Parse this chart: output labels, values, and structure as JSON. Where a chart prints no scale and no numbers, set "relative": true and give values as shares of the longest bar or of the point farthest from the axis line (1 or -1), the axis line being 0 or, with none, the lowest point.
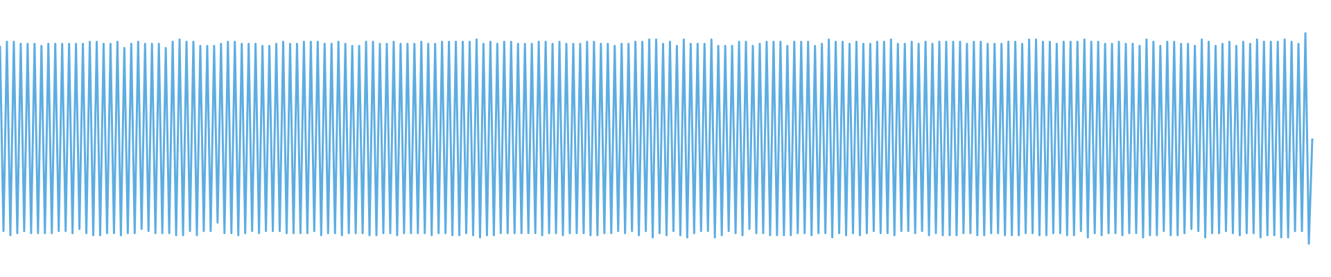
{
  "chart_data": {
    "type": "line",
    "relative": true,
    "color": "#5dade2",
    "marker": "none",
    "line_style": "solid",
    "categories": [
      null,
      null,
      null,
      null,
      null,
      null,
      null,
      null,
      null,
      null,
      null,
      null,
      null,
      null,
      null,
      null,
      null,
      null,
      null,
      null,
      null,
      null,
      null,
      null,
      null,
      null,
      null,
      null,
      null,
      null,
      null,
      null,
      null,
      null,
      null,
      null,
      null,
      null,
      null,
      null,
      null,
      null,
      null,
      null,
      null,
      null,
      null,
      null,
      null,
      null,
      null,
      null,
      null,
      null,
      null,
      null,
      null,
      null,
      null,
      null,
      null,
      null,
      null,
      null,
      null,
      null,
      null,
      null,
      null,
      null,
      null,
      null,
      null,
      null,
      null,
      null,
      null,
      null,
      null,
      null,
      null,
      null,
      null,
      null,
      null,
      null,
      null,
      null,
      null,
      null,
      null,
      null,
      null,
      null,
      null,
      null,
      null,
      null,
      null,
      null,
      null,
      null,
      null,
      null,
      null,
      null,
      null,
      null,
      null,
      null,
      null,
      null,
      null,
      null,
      null,
      null,
      null,
      null,
      null,
      null,
      null,
      null,
      null,
      null,
      null,
      null,
      null,
      null,
      null,
      null,
      null,
      null,
      null,
      null,
      null,
      null,
      null,
      null,
      null,
      null,
      null,
      null,
      null,
      null,
      null,
      null,
      null,
      null,
      null,
      null,
      null,
      null,
      null,
      null,
      null,
      null,
      null,
      null,
      null,
      null,
      null,
      null,
      null,
      null,
      null,
      null,
      null,
      null,
      null,
      null,
      null,
      null,
      null,
      null,
      null,
      null,
      null,
      null,
      null,
      null,
      null,
      null,
      null,
      null,
      null,
      null,
      null,
      null,
      null,
      null,
      null,
      null,
      null,
      null,
      null,
      null,
      null,
      null,
      null,
      null,
      null,
      null,
      null,
      null,
      null,
      null,
      null,
      null,
      null,
      null,
      null,
      null,
      null,
      null,
      null,
      null,
      null,
      null,
      null,
      null,
      null,
      null,
      null,
      null,
      null,
      null,
      null,
      null,
      null,
      null,
      null,
      null,
      null,
      null,
      null,
      null,
      null,
      null,
      null,
      null,
      null,
      null,
      null,
      null,
      null,
      null,
      null,
      null,
      null,
      null,
      null,
      null,
      null,
      null,
      null,
      null,
      null,
      null,
      null,
      null,
      null,
      null,
      null,
      null,
      null,
      null,
      null,
      null,
      null,
      null,
      null,
      null,
      null,
      null,
      null,
      null,
      null,
      null,
      null,
      null,
      null,
      null,
      null,
      null,
      null,
      null,
      null,
      null,
      null,
      null,
      null,
      null,
      null,
      null,
      null,
      null,
      null,
      null,
      null,
      null,
      null,
      null,
      null,
      null,
      null,
      null,
      null,
      null,
      null,
      null,
      null,
      null,
      null,
      null,
      null,
      null,
      null,
      null,
      null,
      null,
      null,
      null,
      null,
      null,
      null,
      null,
      null,
      null,
      null,
      null,
      null,
      null,
      null,
      null,
      null,
      null,
      null,
      null,
      null,
      null,
      null,
      null,
      null,
      null,
      null,
      null,
      null,
      null,
      null,
      null,
      null,
      null,
      null,
      null,
      null,
      null,
      null,
      null,
      null,
      null,
      null,
      null,
      null,
      null,
      null,
      null,
      null,
      null,
      null,
      null,
      null,
      null,
      null,
      null,
      null,
      null,
      null,
      null,
      null,
      null,
      null
    ],
    "values": [
      0.94,
      0.06,
      0.96,
      0.04,
      0.96,
      0.05,
      0.95,
      0.06,
      0.95,
      0.05,
      0.95,
      0.05,
      0.94,
      0.05,
      0.95,
      0.05,
      0.95,
      0.06,
      0.95,
      0.06,
      0.95,
      0.05,
      0.95,
      0.07,
      0.95,
      0.05,
      0.96,
      0.04,
      0.96,
      0.04,
      0.95,
      0.05,
      0.95,
      0.05,
      0.96,
      0.04,
      0.93,
      0.05,
      0.95,
      0.05,
      0.96,
      0.07,
      0.95,
      0.06,
      0.95,
      0.05,
      0.95,
      0.05,
      0.93,
      0.05,
      0.96,
      0.04,
      0.97,
      0.04,
      0.96,
      0.06,
      0.96,
      0.04,
      0.94,
      0.06,
      0.94,
      0.06,
      0.94,
      0.1,
      0.95,
      0.05,
      0.96,
      0.05,
      0.96,
      0.04,
      0.95,
      0.05,
      0.95,
      0.06,
      0.95,
      0.05,
      0.94,
      0.06,
      0.94,
      0.06,
      0.95,
      0.06,
      0.96,
      0.05,
      0.95,
      0.05,
      0.95,
      0.05,
      0.96,
      0.05,
      0.96,
      0.06,
      0.96,
      0.04,
      0.95,
      0.05,
      0.95,
      0.05,
      0.96,
      0.04,
      0.95,
      0.05,
      0.94,
      0.05,
      0.94,
      0.05,
      0.96,
      0.04,
      0.96,
      0.04,
      0.95,
      0.05,
      0.95,
      0.05,
      0.96,
      0.04,
      0.95,
      0.05,
      0.95,
      0.05,
      0.95,
      0.05,
      0.96,
      0.05,
      0.95,
      0.04,
      0.95,
      0.05,
      0.96,
      0.05,
      0.96,
      0.04,
      0.96,
      0.04,
      0.96,
      0.05,
      0.96,
      0.04,
      0.97,
      0.03,
      0.95,
      0.04,
      0.96,
      0.04,
      0.95,
      0.05,
      0.96,
      0.05,
      0.96,
      0.05,
      0.95,
      0.05,
      0.95,
      0.05,
      0.95,
      0.05,
      0.96,
      0.04,
      0.96,
      0.05,
      0.95,
      0.05,
      0.96,
      0.04,
      0.95,
      0.05,
      0.95,
      0.05,
      0.95,
      0.05,
      0.96,
      0.04,
      0.96,
      0.04,
      0.95,
      0.05,
      0.95,
      0.05,
      0.94,
      0.06,
      0.95,
      0.05,
      0.95,
      0.06,
      0.96,
      0.04,
      0.96,
      0.06,
      0.97,
      0.03,
      0.97,
      0.05,
      0.95,
      0.04,
      0.96,
      0.06,
      0.94,
      0.04,
      0.97,
      0.03,
      0.95,
      0.05,
      0.95,
      0.06,
      0.95,
      0.06,
      0.97,
      0.03,
      0.94,
      0.04,
      0.94,
      0.06,
      0.94,
      0.05,
      0.96,
      0.04,
      0.96,
      0.07,
      0.94,
      0.05,
      0.95,
      0.05,
      0.96,
      0.04,
      0.96,
      0.04,
      0.96,
      0.04,
      0.94,
      0.04,
      0.96,
      0.05,
      0.96,
      0.05,
      0.96,
      0.04,
      0.94,
      0.05,
      0.95,
      0.05,
      0.97,
      0.03,
      0.96,
      0.05,
      0.96,
      0.04,
      0.95,
      0.05,
      0.96,
      0.04,
      0.95,
      0.05,
      0.95,
      0.06,
      0.96,
      0.05,
      0.96,
      0.05,
      0.97,
      0.04,
      0.95,
      0.06,
      0.95,
      0.06,
      0.96,
      0.05,
      0.95,
      0.06,
      0.96,
      0.04,
      0.95,
      0.05,
      0.96,
      0.04,
      0.96,
      0.04,
      0.96,
      0.04,
      0.96,
      0.05,
      0.95,
      0.05,
      0.96,
      0.04,
      0.96,
      0.04,
      0.95,
      0.05,
      0.95,
      0.05,
      0.95,
      0.04,
      0.96,
      0.04,
      0.96,
      0.04,
      0.95,
      0.05,
      0.97,
      0.05,
      0.97,
      0.04,
      0.96,
      0.04,
      0.96,
      0.05,
      0.95,
      0.05,
      0.96,
      0.04,
      0.96,
      0.04,
      0.96,
      0.06,
      0.97,
      0.03,
      0.96,
      0.05,
      0.96,
      0.04,
      0.95,
      0.05,
      0.95,
      0.05,
      0.96,
      0.04,
      0.95,
      0.05,
      0.95,
      0.05,
      0.94,
      0.03,
      0.97,
      0.04,
      0.96,
      0.04,
      0.94,
      0.06,
      0.96,
      0.04,
      0.96,
      0.04,
      0.95,
      0.05,
      0.95,
      0.07,
      0.94,
      0.06,
      0.97,
      0.03,
      0.96,
      0.05,
      0.94,
      0.05,
      0.95,
      0.06,
      0.96,
      0.05,
      0.94,
      0.04,
      0.96,
      0.05,
      0.95,
      0.05,
      0.97,
      0.03,
      0.96,
      0.04,
      0.96,
      0.04,
      0.96,
      0.03,
      0.97,
      0.03,
      0.96,
      0.06,
      0.95,
      0.06,
      1,
      0,
      0.5
    ]
  }
}
